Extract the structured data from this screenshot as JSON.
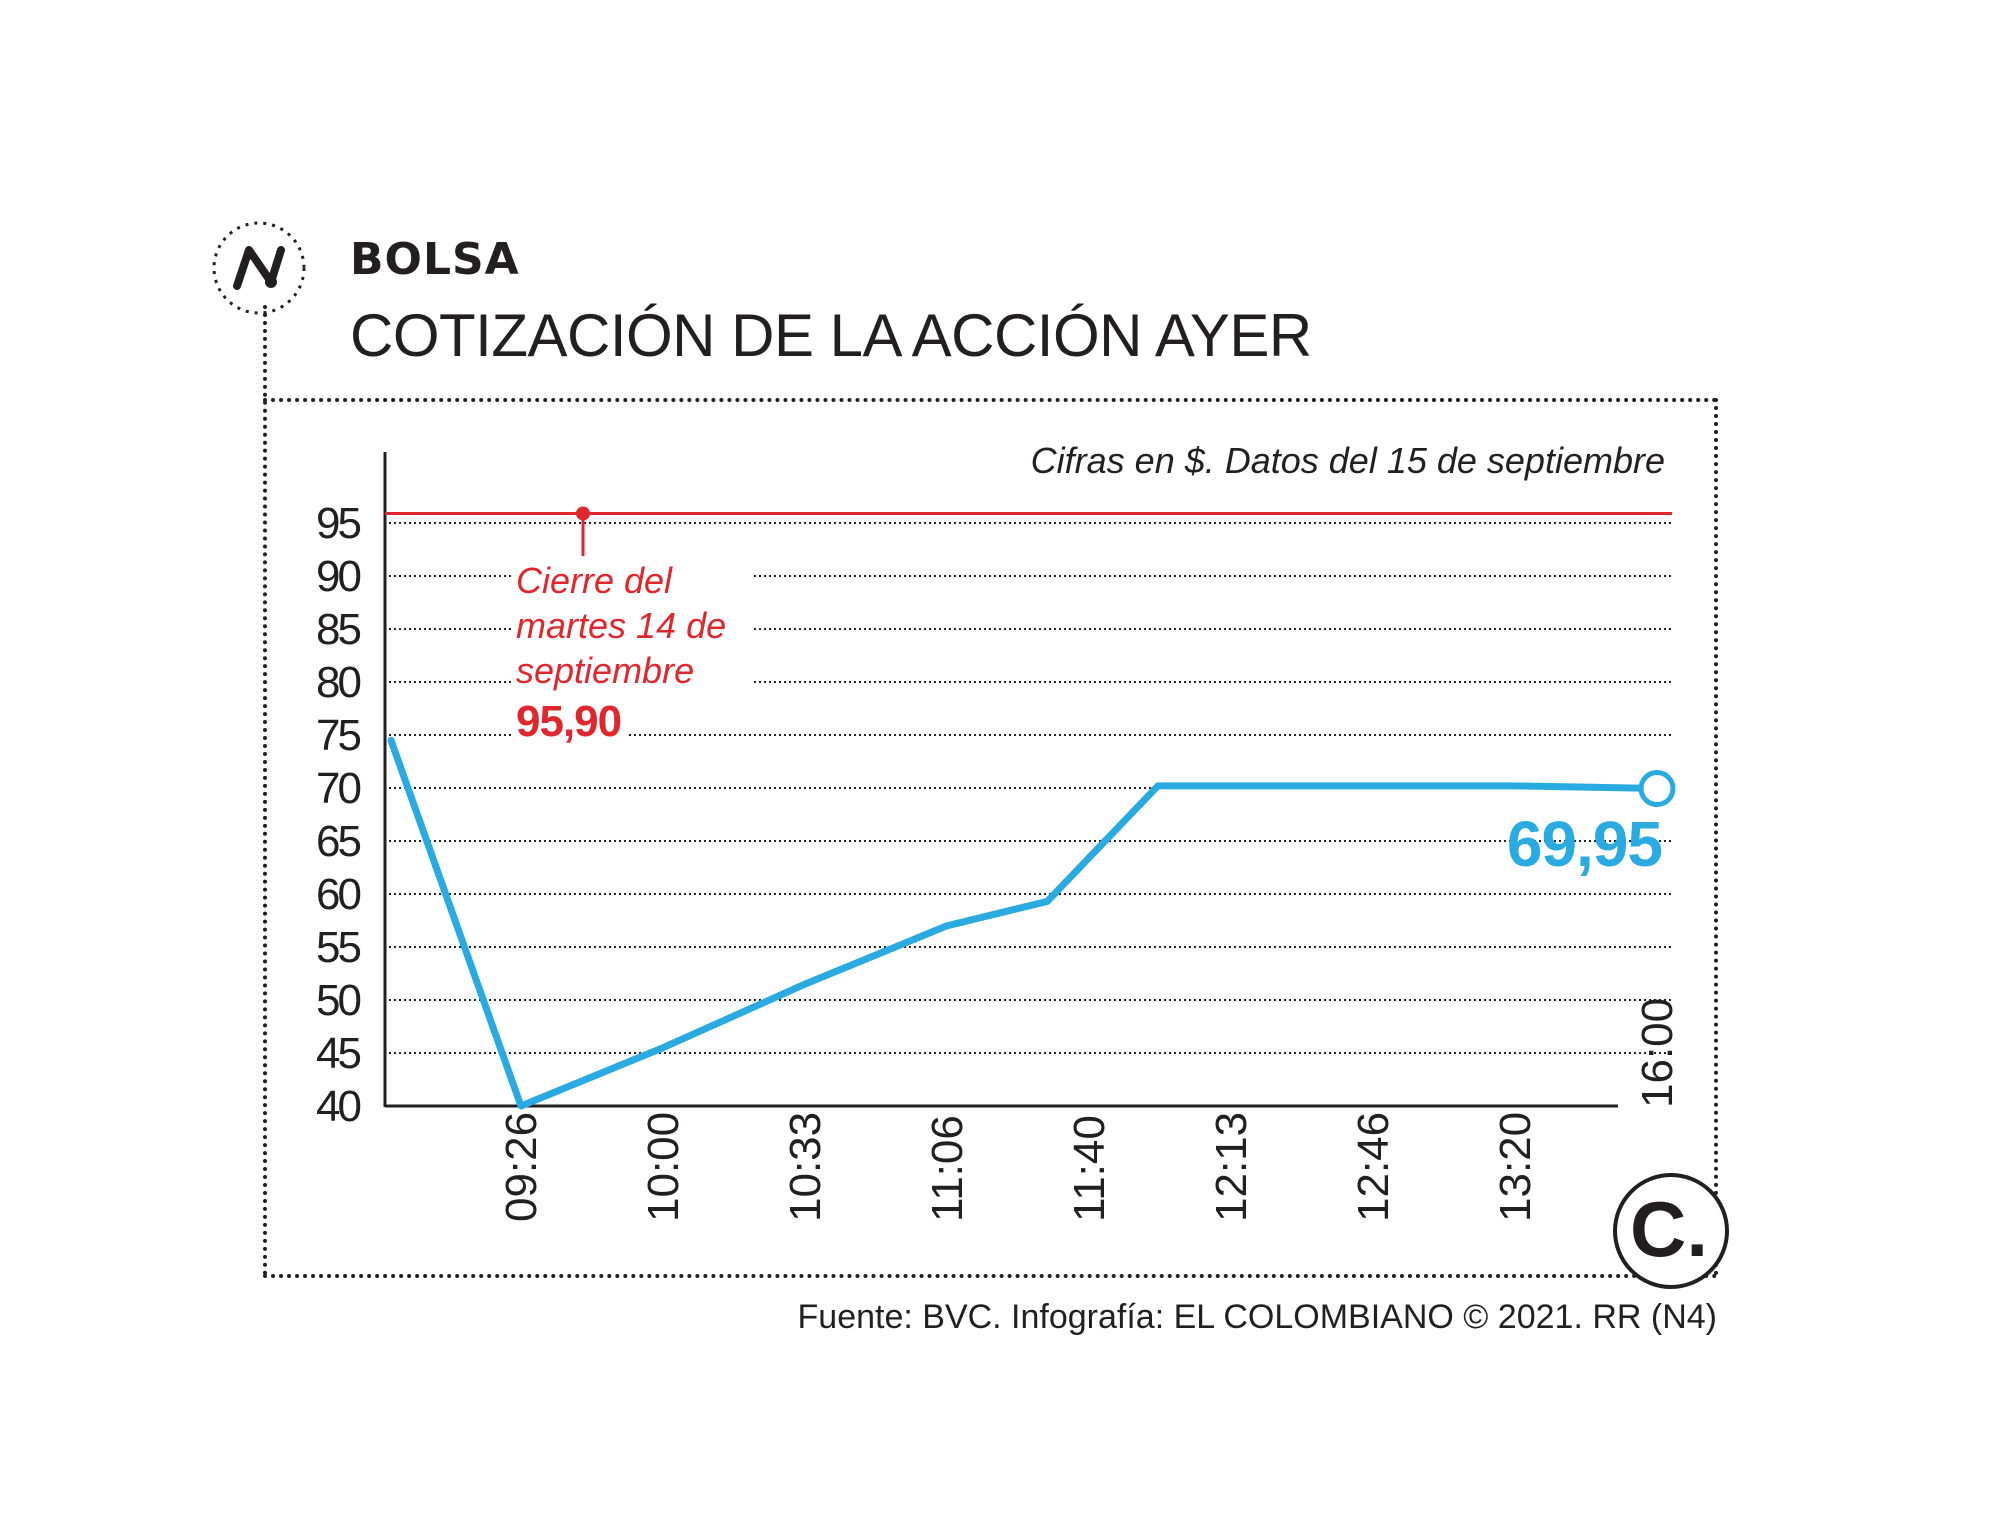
{
  "header": {
    "kicker": "BOLSA",
    "title": "COTIZACIÓN DE LA ACCIÓN AYER"
  },
  "note": "Cifras en $. Datos del 15 de septiembre",
  "reference": {
    "label": "Cierre del martes 14 de septiembre",
    "value_label": "95,90"
  },
  "end_label": "69,95",
  "source": "Fuente: BVC. Infografía: EL COLOMBIANO © 2021. RR (N4)",
  "brand_logo_text": "C.",
  "icons": [
    "trend-line-icon",
    "el-colombiano-logo-icon"
  ],
  "colors": {
    "series": "#29abe2",
    "reference": "#e0272d",
    "text": "#231f20"
  },
  "chart_data": {
    "type": "line",
    "title": "COTIZACIÓN DE LA ACCIÓN AYER",
    "xlabel": "",
    "ylabel": "",
    "ylim": [
      40,
      95
    ],
    "y_ticks": [
      "95",
      "90",
      "85",
      "80",
      "75",
      "70",
      "65",
      "60",
      "55",
      "50",
      "45",
      "40"
    ],
    "y_tick_values": [
      95,
      90,
      85,
      80,
      75,
      70,
      65,
      60,
      55,
      50,
      45,
      40
    ],
    "x_ticks": [
      "09:26",
      "10:00",
      "10:33",
      "11:06",
      "11:40",
      "12:13",
      "12:46",
      "13:20",
      "16:00"
    ],
    "grid": "horizontal dotted",
    "reference_line": {
      "value": 95.9,
      "label": "95,90"
    },
    "series": [
      {
        "points": [
          {
            "x": "09:00",
            "y": 74.5
          },
          {
            "x": "09:26",
            "y": 40.0
          },
          {
            "x": "10:00",
            "y": 45.5
          },
          {
            "x": "10:33",
            "y": 51.5
          },
          {
            "x": "11:06",
            "y": 57.0
          },
          {
            "x": "11:30",
            "y": 59.3
          },
          {
            "x": "11:56",
            "y": 70.2
          },
          {
            "x": "12:13",
            "y": 70.2
          },
          {
            "x": "12:46",
            "y": 70.2
          },
          {
            "x": "13:20",
            "y": 70.2
          },
          {
            "x": "16:00",
            "y": 69.95
          }
        ]
      }
    ]
  }
}
